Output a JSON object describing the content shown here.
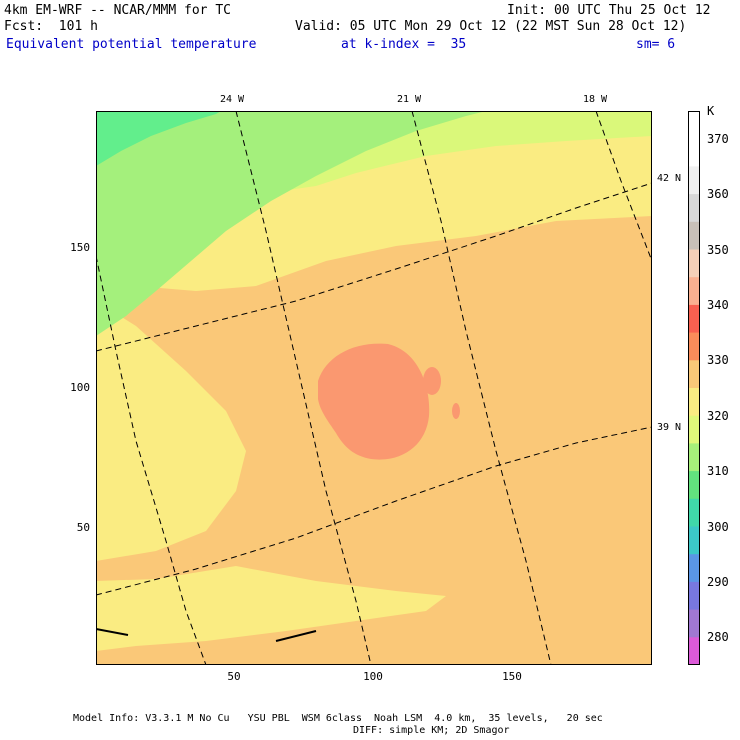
{
  "header": {
    "model": "4km EM-WRF -- NCAR/MMM for TC",
    "init": "Init: 00 UTC Thu 25 Oct 12",
    "fcst": "Fcst:  101 h",
    "valid": "Valid: 05 UTC Mon 29 Oct 12 (22 MST Sun 28 Oct 12)",
    "field": "Equivalent potential temperature",
    "level": "at k-index =  35",
    "smooth": "sm= 6"
  },
  "map": {
    "top_lon_labels": [
      "24 W",
      "21 W",
      "18 W"
    ],
    "right_lat_labels": [
      "42 N",
      "39 N"
    ],
    "y_ticks": [
      "150",
      "100",
      "50"
    ],
    "x_ticks": [
      "50",
      "100",
      "150"
    ],
    "x_range": [
      0,
      200
    ],
    "y_range": [
      0,
      200
    ]
  },
  "colorbar": {
    "unit": "K",
    "levels": [
      "280",
      "290",
      "300",
      "310",
      "320",
      "330",
      "340",
      "350",
      "360",
      "370"
    ],
    "colors": [
      "#ffffff",
      "#ffffff",
      "#f0f0f0",
      "#d8d8d8",
      "#c8c0b8",
      "#f5d0b8",
      "#fab090",
      "#f86050",
      "#fa8c5a",
      "#fac878",
      "#faec82",
      "#e0f87a",
      "#a6f07a",
      "#62e27e",
      "#40d8aa",
      "#3cc8c8",
      "#5a96e6",
      "#7878e0",
      "#a078d2",
      "#dc5ad8"
    ]
  },
  "field_colors": {
    "green": "#62ee8c",
    "light_green": "#a4f07c",
    "yellow_green": "#daf87a",
    "yellow": "#faec82",
    "light_orange": "#fac878",
    "orange": "#fa9870"
  },
  "footer": {
    "line1": "Model Info: V3.3.1 M No Cu   YSU PBL  WSM 6class  Noah LSM  4.0 km,  35 levels,   20 sec",
    "line2": "DIFF: simple KM; 2D Smagor"
  }
}
